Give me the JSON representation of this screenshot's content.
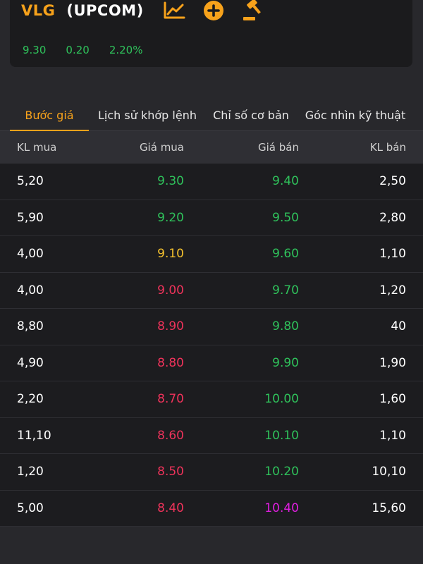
{
  "header": {
    "symbol": "VLG",
    "exchange": "(UPCOM)",
    "price": "9.30",
    "change": "0.20",
    "change_pct": "2.20%",
    "icons": [
      "chart-line-icon",
      "add-circle-icon",
      "gavel-icon"
    ]
  },
  "tabs": [
    {
      "label": "Bước giá",
      "active": true
    },
    {
      "label": "Lịch sử khớp lệnh",
      "active": false
    },
    {
      "label": "Chỉ số cơ bản",
      "active": false
    },
    {
      "label": "Góc nhìn kỹ thuật",
      "active": false
    }
  ],
  "table": {
    "headers": [
      "KL mua",
      "Giá mua",
      "Giá bán",
      "KL bán"
    ],
    "rows": [
      {
        "kl_mua": "5,20",
        "gia_mua": "9.30",
        "gia_mua_color": "#2fc25b",
        "gia_ban": "9.40",
        "gia_ban_color": "#2fc25b",
        "kl_ban": "2,50"
      },
      {
        "kl_mua": "5,90",
        "gia_mua": "9.20",
        "gia_mua_color": "#2fc25b",
        "gia_ban": "9.50",
        "gia_ban_color": "#2fc25b",
        "kl_ban": "2,80"
      },
      {
        "kl_mua": "4,00",
        "gia_mua": "9.10",
        "gia_mua_color": "#f5c22e",
        "gia_ban": "9.60",
        "gia_ban_color": "#2fc25b",
        "kl_ban": "1,10"
      },
      {
        "kl_mua": "4,00",
        "gia_mua": "9.00",
        "gia_mua_color": "#f0335b",
        "gia_ban": "9.70",
        "gia_ban_color": "#2fc25b",
        "kl_ban": "1,20"
      },
      {
        "kl_mua": "8,80",
        "gia_mua": "8.90",
        "gia_mua_color": "#f0335b",
        "gia_ban": "9.80",
        "gia_ban_color": "#2fc25b",
        "kl_ban": "40"
      },
      {
        "kl_mua": "4,90",
        "gia_mua": "8.80",
        "gia_mua_color": "#f0335b",
        "gia_ban": "9.90",
        "gia_ban_color": "#2fc25b",
        "kl_ban": "1,90"
      },
      {
        "kl_mua": "2,20",
        "gia_mua": "8.70",
        "gia_mua_color": "#f0335b",
        "gia_ban": "10.00",
        "gia_ban_color": "#2fc25b",
        "kl_ban": "1,60"
      },
      {
        "kl_mua": "11,10",
        "gia_mua": "8.60",
        "gia_mua_color": "#f0335b",
        "gia_ban": "10.10",
        "gia_ban_color": "#2fc25b",
        "kl_ban": "1,10"
      },
      {
        "kl_mua": "1,20",
        "gia_mua": "8.50",
        "gia_mua_color": "#f0335b",
        "gia_ban": "10.20",
        "gia_ban_color": "#2fc25b",
        "kl_ban": "10,10"
      },
      {
        "kl_mua": "5,00",
        "gia_mua": "8.40",
        "gia_mua_color": "#f0335b",
        "gia_ban": "10.40",
        "gia_ban_color": "#e01ee0",
        "kl_ban": "15,60"
      }
    ]
  },
  "colors": {
    "accent": "#f7a21b",
    "up": "#2fc25b",
    "reference": "#f5c22e",
    "down": "#f0335b",
    "ceiling": "#e01ee0"
  }
}
